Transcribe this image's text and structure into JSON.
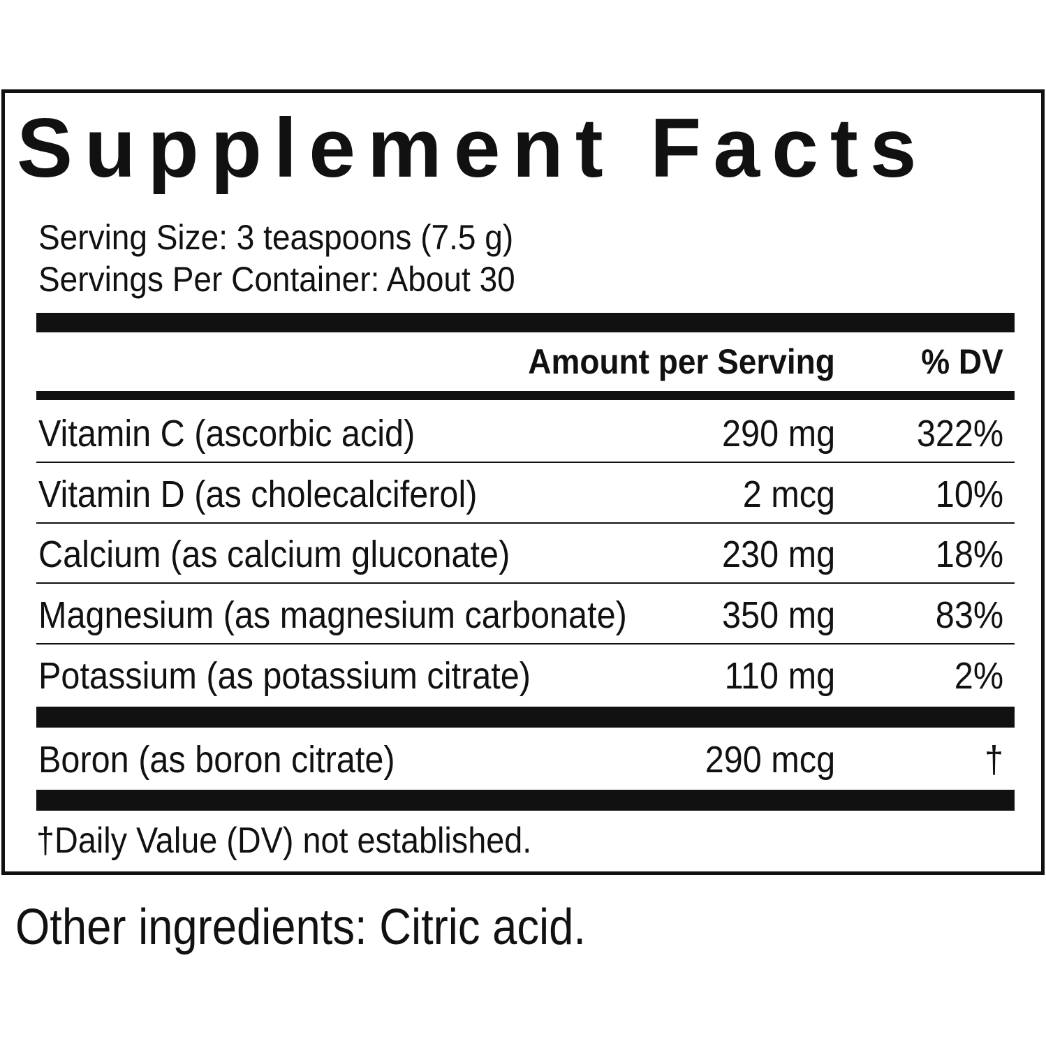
{
  "title": "Supplement Facts",
  "serving_size": "Serving Size: 3 teaspoons (7.5 g)",
  "servings_per_container": "Servings Per Container: About 30",
  "header": {
    "amount": "Amount per Serving",
    "dv": "% DV"
  },
  "rows": [
    {
      "name": "Vitamin C (ascorbic acid)",
      "amount": "290 mg",
      "dv": "322%"
    },
    {
      "name": "Vitamin D (as cholecalciferol)",
      "amount": "2 mcg",
      "dv": "10%"
    },
    {
      "name": "Calcium (as calcium gluconate)",
      "amount": "230 mg",
      "dv": "18%"
    },
    {
      "name": "Magnesium (as magnesium carbonate)",
      "amount": "350 mg",
      "dv": "83%"
    },
    {
      "name": "Potassium (as potassium citrate)",
      "amount": "110 mg",
      "dv": "2%"
    }
  ],
  "other_rows": [
    {
      "name": "Boron (as boron citrate)",
      "amount": "290 mcg",
      "dv": "†"
    }
  ],
  "footnote": "†Daily Value (DV) not established.",
  "other_ingredients": "Other ingredients: Citric acid."
}
